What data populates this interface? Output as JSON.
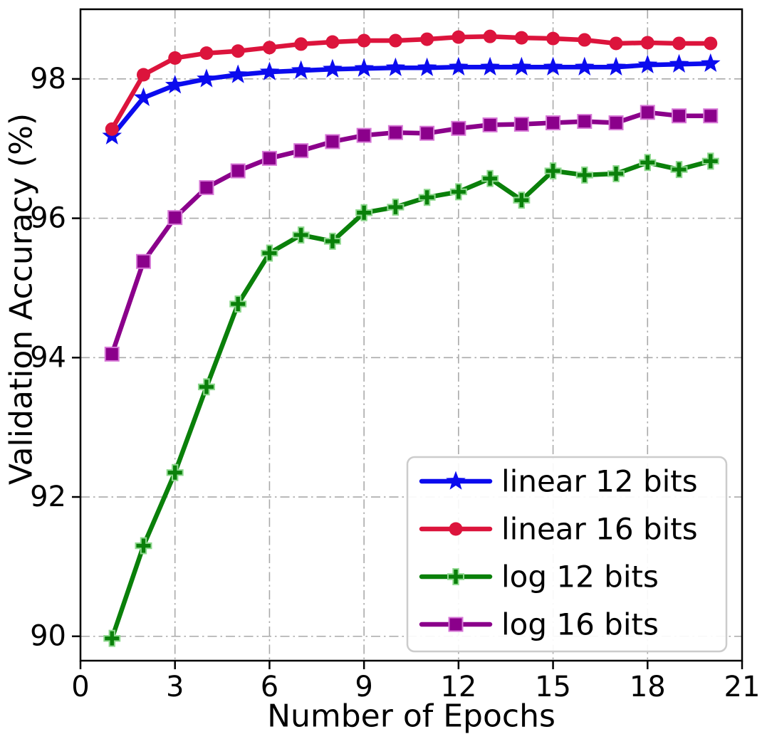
{
  "figure": {
    "background": "#ffffff"
  },
  "chart_data": {
    "type": "line",
    "title": "",
    "xlabel": "Number of Epochs",
    "ylabel": "Validation Accuracy (%)",
    "xlim": [
      0,
      21
    ],
    "ylim": [
      89.65,
      99.0
    ],
    "xticks": [
      0,
      3,
      6,
      9,
      12,
      15,
      18,
      21
    ],
    "yticks": [
      90,
      92,
      94,
      96,
      98
    ],
    "grid": {
      "show": true,
      "style": "dash-dot",
      "color": "#aaaaaa"
    },
    "axis_color": "#000000",
    "x": [
      1,
      2,
      3,
      4,
      5,
      6,
      7,
      8,
      9,
      10,
      11,
      12,
      13,
      14,
      15,
      16,
      17,
      18,
      19,
      20
    ],
    "series": [
      {
        "name": "linear 12 bits",
        "color": "#0b0bee",
        "marker": "star",
        "marker_edge": null,
        "values": [
          97.18,
          97.73,
          97.91,
          98.0,
          98.06,
          98.1,
          98.12,
          98.14,
          98.15,
          98.16,
          98.16,
          98.17,
          98.17,
          98.17,
          98.17,
          98.17,
          98.17,
          98.2,
          98.21,
          98.22
        ]
      },
      {
        "name": "linear 16 bits",
        "color": "#dc143c",
        "marker": "circle",
        "marker_edge": null,
        "values": [
          97.28,
          98.06,
          98.3,
          98.37,
          98.4,
          98.45,
          98.5,
          98.53,
          98.55,
          98.55,
          98.57,
          98.6,
          98.61,
          98.59,
          98.58,
          98.56,
          98.51,
          98.52,
          98.51,
          98.51
        ]
      },
      {
        "name": "log 12 bits",
        "color": "#0a800a",
        "marker": "plus",
        "marker_edge": "#8fd88f",
        "values": [
          89.97,
          91.3,
          92.35,
          93.58,
          94.77,
          95.5,
          95.76,
          95.67,
          96.08,
          96.16,
          96.3,
          96.38,
          96.57,
          96.26,
          96.68,
          96.62,
          96.64,
          96.8,
          96.7,
          96.82
        ]
      },
      {
        "name": "log 16 bits",
        "color": "#8b008b",
        "marker": "square",
        "marker_edge": "#d678d6",
        "values": [
          94.05,
          95.38,
          96.01,
          96.44,
          96.68,
          96.86,
          96.97,
          97.1,
          97.19,
          97.23,
          97.22,
          97.29,
          97.34,
          97.35,
          97.37,
          97.39,
          97.37,
          97.52,
          97.47,
          97.47
        ]
      }
    ],
    "legend": {
      "entries": [
        "linear 12 bits",
        "linear 16 bits",
        "log 12 bits",
        "log 16 bits"
      ],
      "position": "lower right",
      "border_color": "#cccccc",
      "background": "#ffffff"
    }
  }
}
